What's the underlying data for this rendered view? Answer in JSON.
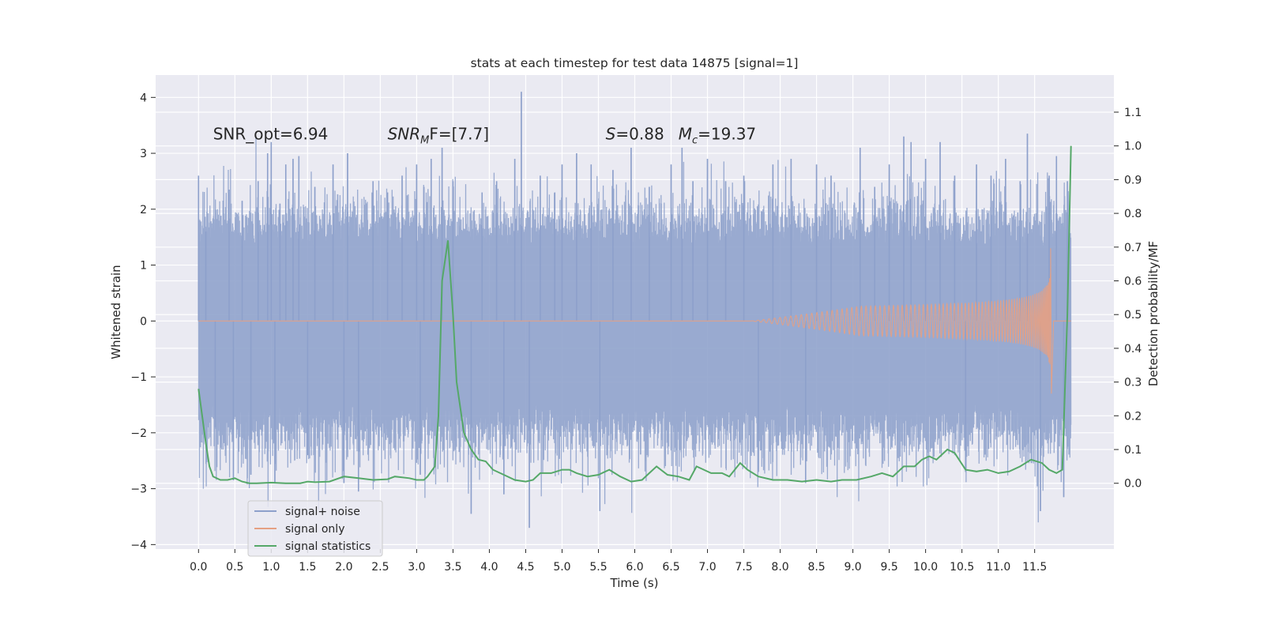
{
  "chart_data": {
    "type": "line",
    "title": "stats at each timestep for test data 14875 [signal=1]",
    "xlabel": "Time (s)",
    "ylabel": "Whitened strain",
    "ylabel_right": "Detection probability/MF",
    "xlim": [
      -0.59,
      12.59
    ],
    "ylim_left": [
      -4.08,
      4.4
    ],
    "ylim_right": [
      -0.195,
      1.21
    ],
    "x_ticks": [
      "0.0",
      "0.5",
      "1.0",
      "1.5",
      "2.0",
      "2.5",
      "3.0",
      "3.5",
      "4.0",
      "4.5",
      "5.0",
      "5.5",
      "6.0",
      "6.5",
      "7.0",
      "7.5",
      "8.0",
      "8.5",
      "9.0",
      "9.5",
      "10.0",
      "10.5",
      "11.0",
      "11.5"
    ],
    "y_ticks_left": [
      -4,
      -3,
      -2,
      -1,
      0,
      1,
      2,
      3,
      4
    ],
    "y_ticks_right": [
      0.0,
      0.1,
      0.2,
      0.3,
      0.4,
      0.5,
      0.6,
      0.7,
      0.8,
      0.9,
      1.0,
      1.1
    ],
    "tick_labels_left": [
      "−4",
      "−3",
      "−2",
      "−1",
      "0",
      "1",
      "2",
      "3",
      "4"
    ],
    "tick_labels_right": [
      "0.0",
      "0.1",
      "0.2",
      "0.3",
      "0.4",
      "0.5",
      "0.6",
      "0.7",
      "0.8",
      "0.9",
      "1.0",
      "1.1"
    ],
    "grid": true,
    "legend_position": "lower-left",
    "annotations": [
      {
        "main": "SNR_opt=6.94",
        "x": 0.2,
        "y": 3.25
      },
      {
        "main": "SNR",
        "sub": "M",
        "rest": "F=[7.7]",
        "x": 2.6,
        "y": 3.25
      },
      {
        "main": "S",
        "rest": "=0.88",
        "x": 5.6,
        "y": 3.25
      },
      {
        "main": "M",
        "sub": "c",
        "rest": "=19.37",
        "x": 6.6,
        "y": 3.25
      }
    ],
    "series": [
      {
        "name": "signal+ noise",
        "color": "#8da0cb",
        "axis": "left",
        "x_start": 0.0,
        "x_end": 12.0,
        "envelope_p2p": 2.5,
        "spikes": [
          {
            "x": 0.0,
            "y": 2.6
          },
          {
            "x": 0.1,
            "y": 1.6
          },
          {
            "x": 0.23,
            "y": -1.9
          },
          {
            "x": 0.42,
            "y": 2.35
          },
          {
            "x": 0.48,
            "y": -2.85
          },
          {
            "x": 0.6,
            "y": 2.15
          },
          {
            "x": 0.72,
            "y": -2.75
          },
          {
            "x": 0.82,
            "y": 2.5
          },
          {
            "x": 0.95,
            "y": 3.0
          },
          {
            "x": 1.0,
            "y": 3.2
          },
          {
            "x": 1.05,
            "y": -2.9
          },
          {
            "x": 1.12,
            "y": 2.1
          },
          {
            "x": 1.2,
            "y": 2.8
          },
          {
            "x": 1.3,
            "y": 2.9
          },
          {
            "x": 1.38,
            "y": 2.95
          },
          {
            "x": 1.5,
            "y": -2.4
          },
          {
            "x": 1.6,
            "y": 2.4
          },
          {
            "x": 1.85,
            "y": 2.8
          },
          {
            "x": 2.0,
            "y": -2.9
          },
          {
            "x": 2.05,
            "y": 3.0
          },
          {
            "x": 2.2,
            "y": -3.05
          },
          {
            "x": 2.4,
            "y": 2.5
          },
          {
            "x": 2.6,
            "y": 2.3
          },
          {
            "x": 2.8,
            "y": 2.6
          },
          {
            "x": 3.0,
            "y": 2.8
          },
          {
            "x": 3.05,
            "y": -2.75
          },
          {
            "x": 3.1,
            "y": 2.4
          },
          {
            "x": 3.2,
            "y": 2.9
          },
          {
            "x": 3.35,
            "y": 3.1
          },
          {
            "x": 3.5,
            "y": 2.5
          },
          {
            "x": 3.75,
            "y": -3.45
          },
          {
            "x": 3.9,
            "y": 2.3
          },
          {
            "x": 4.1,
            "y": 2.5
          },
          {
            "x": 4.2,
            "y": -3.1
          },
          {
            "x": 4.35,
            "y": 2.9
          },
          {
            "x": 4.44,
            "y": 4.1
          },
          {
            "x": 4.55,
            "y": -3.7
          },
          {
            "x": 4.7,
            "y": 2.6
          },
          {
            "x": 4.9,
            "y": 2.3
          },
          {
            "x": 5.0,
            "y": 2.8
          },
          {
            "x": 5.2,
            "y": 3.0
          },
          {
            "x": 5.4,
            "y": 2.8
          },
          {
            "x": 5.52,
            "y": -3.4
          },
          {
            "x": 5.7,
            "y": 2.7
          },
          {
            "x": 5.95,
            "y": 3.1
          },
          {
            "x": 6.2,
            "y": 2.4
          },
          {
            "x": 6.5,
            "y": 2.8
          },
          {
            "x": 6.65,
            "y": 3.1
          },
          {
            "x": 6.8,
            "y": 2.5
          },
          {
            "x": 7.0,
            "y": 2.9
          },
          {
            "x": 7.25,
            "y": 2.5
          },
          {
            "x": 7.5,
            "y": 2.6
          },
          {
            "x": 7.7,
            "y": -2.7
          },
          {
            "x": 7.9,
            "y": 2.8
          },
          {
            "x": 8.15,
            "y": 2.9
          },
          {
            "x": 8.35,
            "y": -2.9
          },
          {
            "x": 8.5,
            "y": 2.8
          },
          {
            "x": 8.7,
            "y": 2.6
          },
          {
            "x": 9.1,
            "y": 3.1
          },
          {
            "x": 9.3,
            "y": 2.4
          },
          {
            "x": 9.5,
            "y": 2.8
          },
          {
            "x": 9.7,
            "y": 3.3
          },
          {
            "x": 9.8,
            "y": 3.2
          },
          {
            "x": 10.0,
            "y": 2.9
          },
          {
            "x": 10.2,
            "y": 3.2
          },
          {
            "x": 10.4,
            "y": 2.6
          },
          {
            "x": 10.55,
            "y": -2.7
          },
          {
            "x": 10.7,
            "y": 2.8
          },
          {
            "x": 10.9,
            "y": 2.6
          },
          {
            "x": 11.1,
            "y": 2.9
          },
          {
            "x": 11.3,
            "y": 2.5
          },
          {
            "x": 11.4,
            "y": 3.35
          },
          {
            "x": 11.58,
            "y": -3.4
          },
          {
            "x": 11.7,
            "y": 2.6
          },
          {
            "x": 11.8,
            "y": 2.95
          },
          {
            "x": 11.9,
            "y": -3.15
          },
          {
            "x": 11.95,
            "y": 2.5
          }
        ]
      },
      {
        "name": "signal only",
        "color": "#e5a083",
        "axis": "left",
        "x_start": 0.0,
        "x_end": 12.0,
        "chirp_start": 7.6,
        "merger": 11.72,
        "peak_amplitude": 1.3
      },
      {
        "name": "signal statistics",
        "color": "#55a868",
        "axis": "right",
        "points": [
          [
            0.0,
            0.28
          ],
          [
            0.05,
            0.2
          ],
          [
            0.1,
            0.12
          ],
          [
            0.15,
            0.05
          ],
          [
            0.2,
            0.02
          ],
          [
            0.3,
            0.01
          ],
          [
            0.4,
            0.01
          ],
          [
            0.5,
            0.015
          ],
          [
            0.6,
            0.005
          ],
          [
            0.7,
            0.0
          ],
          [
            0.8,
            0.0
          ],
          [
            1.0,
            0.002
          ],
          [
            1.2,
            0.0
          ],
          [
            1.4,
            0.0
          ],
          [
            1.5,
            0.005
          ],
          [
            1.6,
            0.003
          ],
          [
            1.8,
            0.005
          ],
          [
            2.0,
            0.02
          ],
          [
            2.2,
            0.015
          ],
          [
            2.4,
            0.01
          ],
          [
            2.6,
            0.012
          ],
          [
            2.7,
            0.02
          ],
          [
            2.9,
            0.015
          ],
          [
            3.0,
            0.01
          ],
          [
            3.1,
            0.01
          ],
          [
            3.15,
            0.02
          ],
          [
            3.25,
            0.05
          ],
          [
            3.3,
            0.2
          ],
          [
            3.35,
            0.6
          ],
          [
            3.43,
            0.72
          ],
          [
            3.5,
            0.5
          ],
          [
            3.55,
            0.3
          ],
          [
            3.65,
            0.15
          ],
          [
            3.75,
            0.1
          ],
          [
            3.85,
            0.07
          ],
          [
            3.95,
            0.065
          ],
          [
            4.05,
            0.04
          ],
          [
            4.2,
            0.025
          ],
          [
            4.35,
            0.01
          ],
          [
            4.5,
            0.005
          ],
          [
            4.6,
            0.01
          ],
          [
            4.7,
            0.03
          ],
          [
            4.85,
            0.03
          ],
          [
            5.0,
            0.04
          ],
          [
            5.1,
            0.04
          ],
          [
            5.2,
            0.03
          ],
          [
            5.35,
            0.02
          ],
          [
            5.5,
            0.025
          ],
          [
            5.65,
            0.04
          ],
          [
            5.8,
            0.02
          ],
          [
            5.95,
            0.005
          ],
          [
            6.1,
            0.01
          ],
          [
            6.2,
            0.03
          ],
          [
            6.3,
            0.05
          ],
          [
            6.45,
            0.025
          ],
          [
            6.6,
            0.02
          ],
          [
            6.75,
            0.01
          ],
          [
            6.85,
            0.05
          ],
          [
            6.95,
            0.04
          ],
          [
            7.05,
            0.03
          ],
          [
            7.2,
            0.03
          ],
          [
            7.3,
            0.02
          ],
          [
            7.45,
            0.06
          ],
          [
            7.55,
            0.04
          ],
          [
            7.7,
            0.02
          ],
          [
            7.9,
            0.01
          ],
          [
            8.1,
            0.01
          ],
          [
            8.3,
            0.005
          ],
          [
            8.5,
            0.01
          ],
          [
            8.7,
            0.005
          ],
          [
            8.85,
            0.01
          ],
          [
            9.05,
            0.01
          ],
          [
            9.25,
            0.02
          ],
          [
            9.4,
            0.03
          ],
          [
            9.55,
            0.02
          ],
          [
            9.7,
            0.05
          ],
          [
            9.85,
            0.05
          ],
          [
            9.95,
            0.07
          ],
          [
            10.05,
            0.08
          ],
          [
            10.15,
            0.07
          ],
          [
            10.3,
            0.1
          ],
          [
            10.4,
            0.09
          ],
          [
            10.55,
            0.04
          ],
          [
            10.7,
            0.035
          ],
          [
            10.85,
            0.04
          ],
          [
            11.0,
            0.03
          ],
          [
            11.15,
            0.035
          ],
          [
            11.3,
            0.05
          ],
          [
            11.45,
            0.07
          ],
          [
            11.6,
            0.06
          ],
          [
            11.7,
            0.04
          ],
          [
            11.8,
            0.03
          ],
          [
            11.88,
            0.04
          ],
          [
            11.95,
            0.5
          ],
          [
            12.0,
            1.0
          ]
        ]
      }
    ]
  }
}
